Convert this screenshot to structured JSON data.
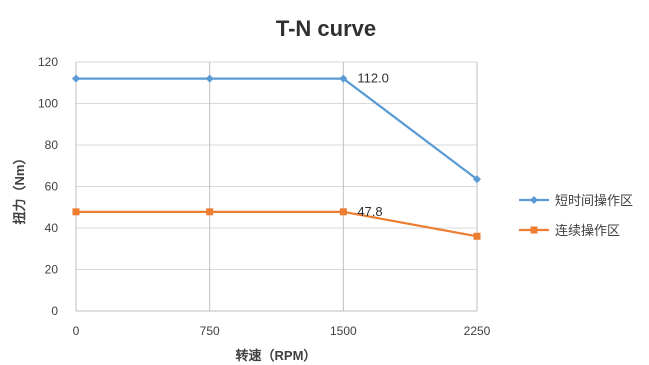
{
  "chart_data": {
    "type": "line",
    "title": "T-N curve",
    "xlabel": "转速（RPM）",
    "ylabel": "扭力（Nm）",
    "categories": [
      "0",
      "750",
      "1500",
      "2250"
    ],
    "x": [
      0,
      750,
      1500,
      2250
    ],
    "ylim": [
      0,
      120
    ],
    "yticks": [
      0,
      20,
      40,
      60,
      80,
      100,
      120
    ],
    "grid": "both",
    "legend_position": "right",
    "series": [
      {
        "name": "短时间操作区",
        "values": [
          112.0,
          112.0,
          112.0,
          63.5
        ],
        "color": "#5B9BD5",
        "marker": "diamond"
      },
      {
        "name": "连续操作区",
        "values": [
          47.8,
          47.8,
          47.8,
          36.0
        ],
        "color": "#ED7D31",
        "marker": "square"
      }
    ],
    "annotations": [
      {
        "series": 0,
        "point": 2,
        "text": "112.0"
      },
      {
        "series": 1,
        "point": 2,
        "text": "47.8"
      }
    ]
  }
}
